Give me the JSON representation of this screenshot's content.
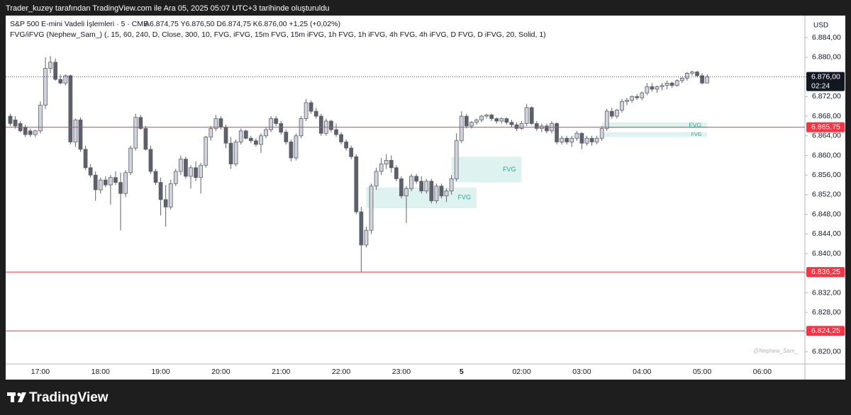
{
  "header": {
    "text": "Trader_kuzey tarafından TradingView.com ile Ara 05, 2025 05:07 UTC+3 tarihinde oluşturuldu"
  },
  "footer": {
    "brand": "TradingView"
  },
  "chart_data": {
    "type": "candlestick",
    "title": "S&P 500 E-mini Vadeli İşlemleri · 5 · CME",
    "ohlc_readout": "A6.874,75 Y6.876,50 D6.874,75 K6.876,00 +1,25 (+0,02%)",
    "indicator": "FVG/iFVG (Nephew_Sam_) (, 15, 60, 240, D, Close, 300, 10, FVG, iFVG, 15m FVG, 15m iFVG, 1h FVG, 1h iFVG, 4h FVG, 4h iFVG, D FVG, D iFVG, 20, Solid, 1)",
    "currency": "USD",
    "watermark": "@Nephew_Sam_",
    "categories": [
      null,
      null,
      null,
      null,
      null,
      null,
      "17:00",
      null,
      null,
      null,
      null,
      null,
      null,
      null,
      null,
      null,
      null,
      null,
      "18:00",
      null,
      null,
      null,
      null,
      null,
      null,
      null,
      null,
      null,
      null,
      null,
      "19:00",
      null,
      null,
      null,
      null,
      null,
      null,
      null,
      null,
      null,
      null,
      null,
      "20:00",
      null,
      null,
      null,
      null,
      null,
      null,
      null,
      null,
      null,
      null,
      null,
      "21:00",
      null,
      null,
      null,
      null,
      null,
      null,
      null,
      null,
      null,
      null,
      null,
      "22:00",
      null,
      null,
      null,
      null,
      null,
      null,
      null,
      null,
      null,
      null,
      null,
      "23:00",
      null,
      null,
      null,
      null,
      null,
      null,
      null,
      null,
      null,
      null,
      null,
      "5",
      null,
      null,
      null,
      null,
      null,
      null,
      null,
      null,
      null,
      null,
      null,
      "02:00",
      null,
      null,
      null,
      null,
      null,
      null,
      null,
      null,
      null,
      null,
      null,
      "03:00",
      null,
      null,
      null,
      null,
      null,
      null,
      null,
      null,
      null,
      null,
      null,
      "04:00",
      null,
      null,
      null,
      null,
      null,
      null,
      null,
      null,
      null,
      null,
      null,
      "05:00",
      null,
      null,
      null,
      null,
      null,
      null,
      null,
      null,
      null,
      null,
      null,
      "06:00",
      null,
      null,
      null,
      null,
      null,
      null,
      null,
      null
    ],
    "open": [
      6868,
      6867.25,
      6866.5,
      6865.75,
      6865,
      6864.25,
      6865,
      6870.25,
      6877.75,
      6879,
      6875.5,
      6874.75,
      6876.25,
      6862.75,
      6867.25,
      6861.25,
      6857.5,
      6856,
      6853,
      6855,
      6854,
      6855.5,
      6854.5,
      6852.25,
      6856.5,
      6861.5,
      6867.75,
      6865.5,
      6861.25,
      6856.75,
      6854.5,
      6851,
      6849.5,
      6854.25,
      6856.75,
      6859.25,
      6855.75,
      6857.5,
      6855.5,
      6858,
      6863.75,
      6865.5,
      6867.5,
      6865.75,
      6862.5,
      6858.25,
      6862.75,
      6865,
      6863.5,
      6863,
      6862.25,
      6864,
      6865.25,
      6867.5,
      6866.5,
      6864.75,
      6862.75,
      6859.5,
      6864,
      6867.5,
      6870.75,
      6869,
      6868,
      6864.5,
      6867,
      6865.25,
      6864.25,
      6862.75,
      6861.5,
      6859.75,
      6848.5,
      6841.75,
      6844.75,
      6853.75,
      6856.75,
      6858.25,
      6859,
      6857.5,
      6855.25,
      6851.75,
      6853.25,
      6855.75,
      6854.75,
      6852.75,
      6854.75,
      6850.75,
      6853.75,
      6851.75,
      6852.75,
      6855.25,
      6863,
      6868,
      6866,
      6866.75,
      6867.25,
      6868,
      6868.25,
      6867.5,
      6867,
      6867.5,
      6866.75,
      6866.25,
      6865.5,
      6866.5,
      6869.75,
      6866.5,
      6865.5,
      6866,
      6865,
      6866.5,
      6862.75,
      6863.5,
      6862.75,
      6863.5,
      6864.5,
      6862.5,
      6863.5,
      6862.75,
      6863.5,
      6865.5,
      6869,
      6868,
      6869.25,
      6871,
      6871.25,
      6872,
      6871.75,
      6872.75,
      6874,
      6873.5,
      6874,
      6874.25,
      6874.75,
      6874.25,
      6875.25,
      6875.75,
      6876.75,
      6877,
      6876.25,
      6874.75,
      null,
      null,
      null,
      null,
      null,
      null,
      null,
      null,
      null,
      null,
      null,
      null,
      null,
      null,
      null,
      null,
      null,
      null,
      null
    ],
    "high": [
      6868.5,
      6868,
      6867,
      6866.25,
      6865.5,
      6865.25,
      6871,
      6880,
      6880.25,
      6879.75,
      6876.5,
      6876.5,
      6876.5,
      6867.5,
      6867.75,
      6862,
      6858.25,
      6856.75,
      6855.5,
      6855.75,
      6856,
      6856.75,
      6856.5,
      6857,
      6862,
      6868.5,
      6868.25,
      6866,
      6862,
      6857.25,
      6855.5,
      6854,
      6855,
      6857.25,
      6860,
      6859.75,
      6858,
      6858.75,
      6858.5,
      6864,
      6866,
      6868.25,
      6868,
      6866.25,
      6863.75,
      6863.25,
      6865.5,
      6865.25,
      6864,
      6863.5,
      6864.5,
      6865.75,
      6868,
      6868,
      6867,
      6865.25,
      6863.25,
      6864.5,
      6868,
      6871.5,
      6871.25,
      6869.75,
      6868.5,
      6867.5,
      6867.25,
      6866.5,
      6864.75,
      6863.25,
      6862,
      6860.25,
      6849.5,
      6845.5,
      6854.25,
      6857.5,
      6859.5,
      6860.25,
      6860,
      6858,
      6855.75,
      6853.75,
      6856.25,
      6856.25,
      6855.75,
      6855.25,
      6855.25,
      6854.25,
      6854.25,
      6853.25,
      6856,
      6864.5,
      6869,
      6868.5,
      6867,
      6867.5,
      6868.25,
      6868.5,
      6868.5,
      6867.75,
      6867.75,
      6867.75,
      6867.25,
      6866.75,
      6867,
      6870.5,
      6870,
      6867,
      6866.5,
      6866.5,
      6867,
      6866.75,
      6864,
      6864,
      6864,
      6865,
      6864.75,
      6864,
      6864,
      6864,
      6866,
      6869.5,
      6869.75,
      6869.5,
      6871.5,
      6871.75,
      6872.25,
      6872.5,
      6873,
      6874.75,
      6874.75,
      6874.25,
      6874.75,
      6875.25,
      6875,
      6875.5,
      6876,
      6877,
      6877.25,
      6877.25,
      6876.75,
      6876.5,
      null,
      null,
      null,
      null,
      null,
      null,
      null,
      null,
      null,
      null,
      null,
      null,
      null,
      null,
      null,
      null,
      null,
      null,
      null
    ],
    "low": [
      6866,
      6865.5,
      6864.75,
      6863.75,
      6863.75,
      6863.75,
      6864.5,
      6869.5,
      6876.75,
      6875.25,
      6874.5,
      6874.25,
      6862.25,
      6861.75,
      6860.75,
      6857,
      6855.5,
      6850.75,
      6852.25,
      6853.5,
      6850,
      6854,
      6844.75,
      6851.5,
      6856,
      6861,
      6865.25,
      6861,
      6856.25,
      6854,
      6847.75,
      6845.5,
      6849,
      6853.75,
      6856,
      6855.25,
      6853.25,
      6854.75,
      6852.25,
      6857.5,
      6863,
      6865,
      6865.25,
      6861.5,
      6857.25,
      6857.75,
      6862.25,
      6863.25,
      6862.5,
      6861.75,
      6860.5,
      6863.5,
      6864.75,
      6866,
      6864.25,
      6862.25,
      6858.75,
      6859,
      6863.5,
      6867,
      6868.5,
      6867.5,
      6864,
      6864,
      6864.75,
      6863.75,
      6862.25,
      6861,
      6859.25,
      6848,
      6836.25,
      6841.25,
      6844,
      6853,
      6856,
      6857.25,
      6856.5,
      6854.75,
      6851.25,
      6846.25,
      6852.75,
      6854.25,
      6852.25,
      6852.25,
      6850.25,
      6850.25,
      6851.25,
      6850.5,
      6852,
      6854.75,
      6862.5,
      6865.5,
      6865.5,
      6866.25,
      6866.75,
      6867.5,
      6867,
      6866.5,
      6866.5,
      6866.25,
      6865.75,
      6865,
      6865.25,
      6866,
      6866.25,
      6865,
      6864.75,
      6864.5,
      6864.5,
      6862.25,
      6862.25,
      6862.25,
      6861.75,
      6863,
      6861.25,
      6862,
      6862,
      6862.25,
      6863,
      6865,
      6867.5,
      6867.5,
      6868.75,
      6870.25,
      6870.75,
      6871.25,
      6871.25,
      6872.25,
      6873,
      6872.75,
      6873.25,
      6873.5,
      6873.75,
      6874,
      6874.75,
      6875.25,
      6876.25,
      6876,
      6874.5,
      6874.75,
      null,
      null,
      null,
      null,
      null,
      null,
      null,
      null,
      null,
      null,
      null,
      null,
      null,
      null,
      null,
      null,
      null,
      null,
      null
    ],
    "close": [
      6866.5,
      6866,
      6865,
      6864.25,
      6864.25,
      6865,
      6870.25,
      6877.75,
      6879,
      6875.5,
      6874.75,
      6876.25,
      6862.75,
      6867.25,
      6861.25,
      6857.5,
      6856,
      6853,
      6855,
      6854,
      6855.5,
      6854.5,
      6852.25,
      6856.5,
      6861.5,
      6867.75,
      6865.5,
      6861.25,
      6856.75,
      6854.5,
      6851,
      6849.5,
      6854.25,
      6856.75,
      6859.25,
      6855.75,
      6857.5,
      6855.5,
      6858,
      6863.75,
      6865.5,
      6867.5,
      6865.75,
      6862.5,
      6858.25,
      6862.75,
      6865,
      6863.5,
      6863,
      6862.25,
      6864,
      6865.25,
      6867.5,
      6866.5,
      6864.75,
      6862.75,
      6859.5,
      6864,
      6867.5,
      6870.75,
      6869,
      6868,
      6864.5,
      6867,
      6865.25,
      6864.25,
      6862.75,
      6861.5,
      6859.75,
      6848.5,
      6841.75,
      6844.75,
      6853.75,
      6856.75,
      6858.25,
      6859,
      6857.5,
      6855.25,
      6851.75,
      6853.25,
      6855.75,
      6854.75,
      6852.75,
      6854.75,
      6850.75,
      6853.75,
      6851.75,
      6852.75,
      6855.25,
      6863,
      6868,
      6866,
      6866.75,
      6867.25,
      6868,
      6868.25,
      6867.5,
      6867,
      6867.5,
      6866.75,
      6866.25,
      6865.5,
      6866.5,
      6869.75,
      6866.5,
      6865.5,
      6866,
      6865,
      6866.5,
      6862.75,
      6863.5,
      6862.75,
      6863.5,
      6864.5,
      6862.5,
      6863.5,
      6862.75,
      6863.5,
      6865.5,
      6869,
      6868,
      6869.25,
      6871,
      6871.25,
      6872,
      6871.75,
      6872.75,
      6874,
      6873.5,
      6874,
      6874.25,
      6874.75,
      6874.25,
      6875.25,
      6875.75,
      6876.75,
      6877,
      6876.25,
      6874.75,
      6876,
      null,
      null,
      null,
      null,
      null,
      null,
      null,
      null,
      null,
      null,
      null,
      null,
      null,
      null,
      null,
      null,
      null,
      null,
      null
    ],
    "up_color": "#d1d4dc",
    "down_color": "#5d606b",
    "wick_color": "#5d606b",
    "ylim": [
      6817.5,
      6888.5
    ],
    "yticks": [
      {
        "value": 6820,
        "label": "6.820,00"
      },
      {
        "value": 6824,
        "label": "6.824,00"
      },
      {
        "value": 6828,
        "label": "6.828,00"
      },
      {
        "value": 6832,
        "label": "6.832,00"
      },
      {
        "value": 6836,
        "label": "6.836,00"
      },
      {
        "value": 6840,
        "label": "6.840,00"
      },
      {
        "value": 6844,
        "label": "6.844,00"
      },
      {
        "value": 6848,
        "label": "6.848,00"
      },
      {
        "value": 6852,
        "label": "6.852,00"
      },
      {
        "value": 6856,
        "label": "6.856,00"
      },
      {
        "value": 6860,
        "label": "6.860,00"
      },
      {
        "value": 6864,
        "label": "6.864,00"
      },
      {
        "value": 6868,
        "label": "6.868,00"
      },
      {
        "value": 6872,
        "label": "6.872,00"
      },
      {
        "value": 6876,
        "label": "6.876,00"
      },
      {
        "value": 6880,
        "label": "6.880,00"
      },
      {
        "value": 6884,
        "label": "6.884,00"
      }
    ],
    "grid": false,
    "hlines": [
      {
        "value": 6865.75,
        "label": "6.865,75"
      },
      {
        "value": 6836.25,
        "label": "6.836,25"
      },
      {
        "value": 6824.25,
        "label": "6.824,25"
      }
    ],
    "hline_color": "#f23645",
    "last_price": {
      "value": 6876,
      "label": "6.876,00"
    },
    "countdown": "02:24",
    "zones": [
      {
        "label": "FVG",
        "start": 71,
        "end": 93,
        "low": 6849.25,
        "high": 6853.5
      },
      {
        "label": "FVG",
        "start": 88,
        "end": 102,
        "low": 6854.5,
        "high": 6859.75
      },
      {
        "label": "FVG",
        "start": 118,
        "end": 139,
        "low": 6865.5,
        "high": 6866.75
      },
      {
        "label": "FVG",
        "start": 118,
        "end": 139,
        "low": 6863.75,
        "high": 6864.75
      }
    ],
    "zone_color": "#22ab94"
  }
}
